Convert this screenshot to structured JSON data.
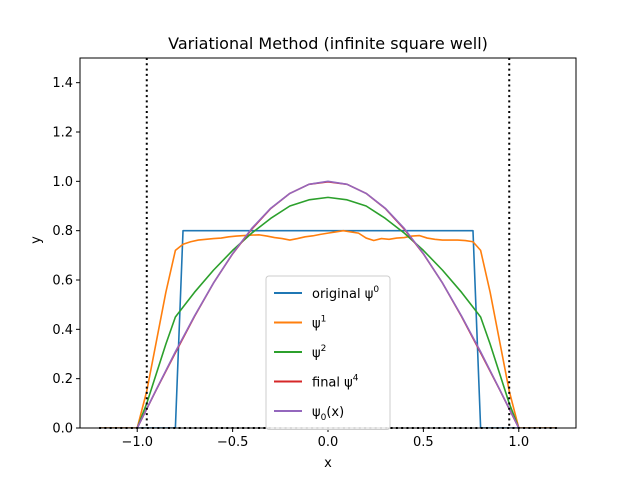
{
  "chart_data": {
    "type": "line",
    "title": "Variational Method (infinite square well)",
    "xlabel": "x",
    "ylabel": "y",
    "xlim": [
      -1.3,
      1.3
    ],
    "ylim": [
      0,
      1.5
    ],
    "x_ticks": [
      -1.0,
      -0.5,
      0.0,
      0.5,
      1.0
    ],
    "x_tick_labels": [
      "−1.0",
      "−0.5",
      "0.0",
      "0.5",
      "1.0"
    ],
    "y_ticks": [
      0.0,
      0.2,
      0.4,
      0.6,
      0.8,
      1.0,
      1.2,
      1.4
    ],
    "y_tick_labels": [
      "0.0",
      "0.2",
      "0.4",
      "0.6",
      "0.8",
      "1.0",
      "1.2",
      "1.4"
    ],
    "legend_position": "lower-center",
    "reference_lines": {
      "vertical_x": [
        -0.95,
        0.95
      ],
      "horizontal_y": 0.0,
      "style": "dotted",
      "color": "#000000"
    },
    "series": [
      {
        "name": "original ψ",
        "superscript": "0",
        "color": "#1f77b4",
        "x": [
          -1.2,
          -0.8,
          -0.78,
          -0.76,
          0.76,
          0.78,
          0.8,
          1.2
        ],
        "y": [
          0,
          0,
          0.4,
          0.8,
          0.8,
          0.4,
          0,
          0
        ]
      },
      {
        "name": "ψ",
        "superscript": "1",
        "color": "#ff7f0e",
        "x": [
          -1.2,
          -1.0,
          -0.95,
          -0.9,
          -0.85,
          -0.8,
          -0.76,
          -0.72,
          -0.68,
          -0.64,
          -0.6,
          -0.56,
          -0.52,
          -0.48,
          -0.44,
          -0.4,
          -0.36,
          -0.32,
          -0.28,
          -0.24,
          -0.2,
          -0.16,
          -0.12,
          -0.08,
          -0.04,
          0.0,
          0.04,
          0.08,
          0.12,
          0.16,
          0.2,
          0.24,
          0.28,
          0.32,
          0.36,
          0.4,
          0.44,
          0.48,
          0.52,
          0.56,
          0.6,
          0.64,
          0.68,
          0.72,
          0.76,
          0.8,
          0.85,
          0.9,
          0.95,
          1.0,
          1.2
        ],
        "y": [
          0,
          0,
          0.15,
          0.35,
          0.55,
          0.72,
          0.745,
          0.755,
          0.762,
          0.765,
          0.768,
          0.77,
          0.775,
          0.778,
          0.78,
          0.782,
          0.783,
          0.778,
          0.772,
          0.768,
          0.762,
          0.768,
          0.775,
          0.779,
          0.785,
          0.79,
          0.795,
          0.8,
          0.795,
          0.79,
          0.77,
          0.76,
          0.768,
          0.765,
          0.77,
          0.772,
          0.778,
          0.78,
          0.77,
          0.765,
          0.762,
          0.762,
          0.762,
          0.76,
          0.755,
          0.72,
          0.55,
          0.35,
          0.15,
          0,
          0
        ]
      },
      {
        "name": "ψ",
        "superscript": "2",
        "color": "#2ca02c",
        "x": [
          -1.0,
          -0.95,
          -0.9,
          -0.85,
          -0.8,
          -0.76,
          -0.7,
          -0.6,
          -0.5,
          -0.4,
          -0.3,
          -0.2,
          -0.1,
          0.0,
          0.1,
          0.2,
          0.3,
          0.4,
          0.5,
          0.6,
          0.7,
          0.76,
          0.8,
          0.85,
          0.9,
          0.95,
          1.0
        ],
        "y": [
          0,
          0.1,
          0.22,
          0.34,
          0.45,
          0.49,
          0.55,
          0.64,
          0.72,
          0.79,
          0.85,
          0.9,
          0.925,
          0.935,
          0.925,
          0.9,
          0.85,
          0.79,
          0.72,
          0.64,
          0.55,
          0.49,
          0.45,
          0.34,
          0.22,
          0.1,
          0
        ]
      },
      {
        "name": "final ψ",
        "superscript": "4",
        "color": "#d62728",
        "x": [
          -1.0,
          -0.9,
          -0.8,
          -0.7,
          -0.6,
          -0.5,
          -0.4,
          -0.3,
          -0.2,
          -0.1,
          0.0,
          0.1,
          0.2,
          0.3,
          0.4,
          0.5,
          0.6,
          0.7,
          0.8,
          0.9,
          1.0
        ],
        "y": [
          0,
          0.155,
          0.305,
          0.452,
          0.588,
          0.706,
          0.806,
          0.89,
          0.951,
          0.988,
          0.998,
          0.988,
          0.951,
          0.89,
          0.806,
          0.706,
          0.588,
          0.452,
          0.305,
          0.155,
          0
        ]
      },
      {
        "name": "ψ",
        "subscript": "0",
        "suffix": "(x)",
        "color": "#9467bd",
        "x": [
          -1.0,
          -0.9,
          -0.8,
          -0.7,
          -0.6,
          -0.5,
          -0.4,
          -0.3,
          -0.2,
          -0.1,
          0.0,
          0.1,
          0.2,
          0.3,
          0.4,
          0.5,
          0.6,
          0.7,
          0.8,
          0.9,
          1.0
        ],
        "y": [
          0,
          0.156,
          0.309,
          0.454,
          0.588,
          0.707,
          0.809,
          0.891,
          0.951,
          0.988,
          1.0,
          0.988,
          0.951,
          0.891,
          0.809,
          0.707,
          0.588,
          0.454,
          0.309,
          0.156,
          0
        ]
      }
    ]
  }
}
